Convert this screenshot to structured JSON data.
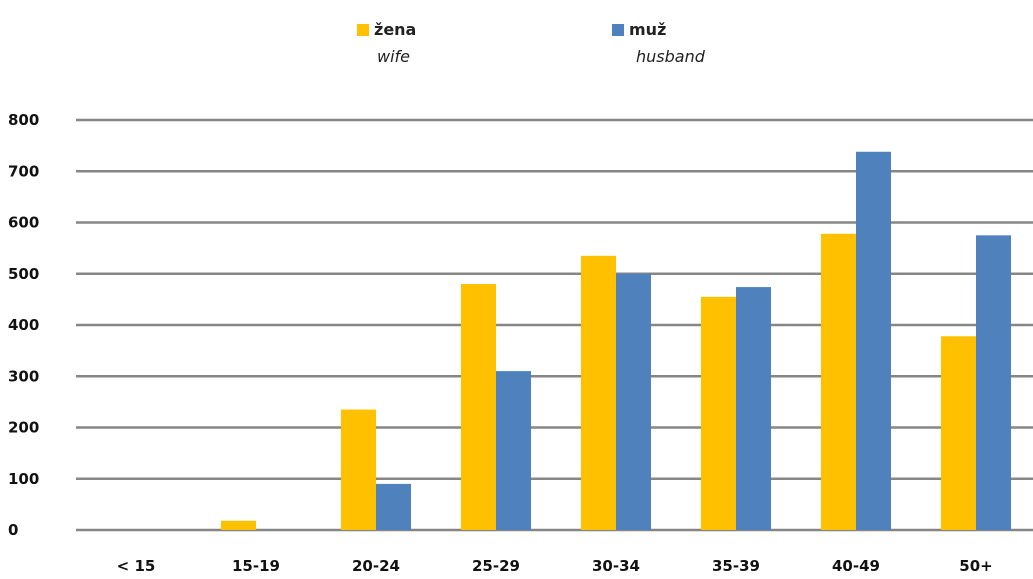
{
  "chart_data": {
    "type": "bar",
    "categories": [
      "< 15",
      "15-19",
      "20-24",
      "25-29",
      "30-34",
      "35-39",
      "40-49",
      "50+"
    ],
    "series": [
      {
        "name": "žena",
        "subtitle": "wife",
        "color": "#FFC000",
        "values": [
          0,
          18,
          235,
          480,
          535,
          455,
          578,
          378
        ]
      },
      {
        "name": "muž",
        "subtitle": "husband",
        "color": "#4F81BD",
        "values": [
          0,
          0,
          90,
          310,
          500,
          474,
          738,
          575
        ]
      }
    ],
    "yticks": [
      0,
      100,
      200,
      300,
      400,
      500,
      600,
      700,
      800
    ],
    "ylim": [
      0,
      800
    ],
    "grid": true,
    "legend_position": "top-center"
  }
}
